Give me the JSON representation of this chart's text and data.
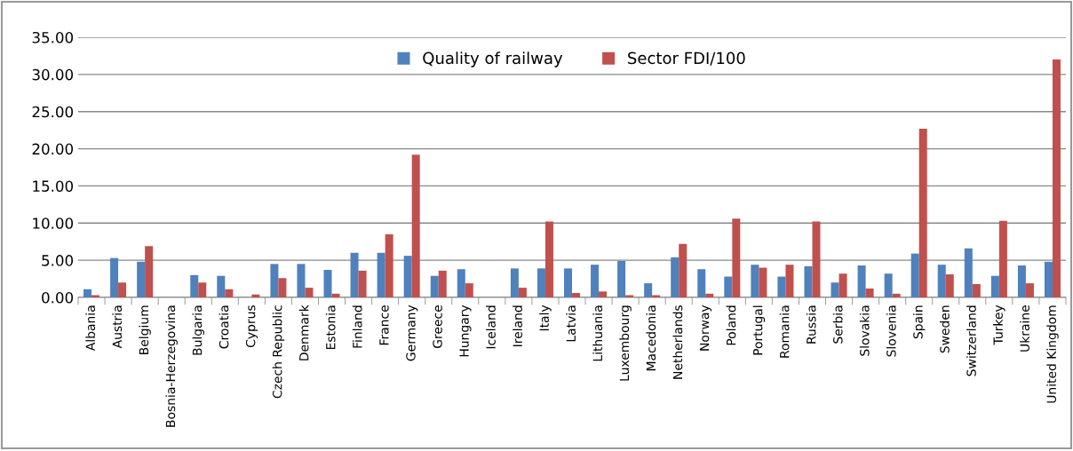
{
  "chart_data": {
    "type": "bar",
    "categories": [
      "Albania",
      "Austria",
      "Belgium",
      "Bosnia-Herzegovina",
      "Bulgaria",
      "Croatia",
      "Cyprus",
      "Czech Republic",
      "Denmark",
      "Estonia",
      "Finland",
      "France",
      "Germany",
      "Greece",
      "Hungary",
      "Iceland",
      "Ireland",
      "Italy",
      "Latvia",
      "Lithuania",
      "Luxembourg",
      "Macedonia",
      "Netherlands",
      "Norway",
      "Poland",
      "Portugal",
      "Romania",
      "Russia",
      "Serbia",
      "Slovakia",
      "Slovenia",
      "Spain",
      "Sweden",
      "Switzerland",
      "Turkey",
      "Ukraine",
      "United Kingdom"
    ],
    "series": [
      {
        "name": "Quality of railway",
        "color": "#4f81bd",
        "values": [
          1.1,
          5.3,
          4.8,
          0,
          3.0,
          2.9,
          0,
          4.5,
          4.5,
          3.7,
          6.0,
          6.0,
          5.6,
          2.9,
          3.8,
          0,
          3.9,
          3.9,
          3.9,
          4.4,
          4.9,
          1.9,
          5.4,
          3.8,
          2.8,
          4.4,
          2.8,
          4.2,
          2.0,
          4.3,
          3.2,
          5.9,
          4.4,
          6.6,
          2.9,
          4.3,
          4.8
        ]
      },
      {
        "name": "Sector FDI/100",
        "color": "#c0504d",
        "values": [
          0.3,
          2.0,
          6.9,
          0,
          2.0,
          1.1,
          0.4,
          2.6,
          1.3,
          0.5,
          3.6,
          8.5,
          19.2,
          3.6,
          1.9,
          0,
          1.3,
          10.2,
          0.6,
          0.8,
          0.3,
          0.3,
          7.2,
          0.5,
          10.6,
          4.0,
          4.4,
          10.2,
          3.2,
          1.2,
          0.5,
          22.7,
          3.1,
          1.8,
          10.3,
          1.9,
          32.0
        ]
      }
    ],
    "ylim": [
      0,
      35
    ],
    "yticks": [
      {
        "value": 0,
        "label": "0.00"
      },
      {
        "value": 5,
        "label": "5.00"
      },
      {
        "value": 10,
        "label": "10.00"
      },
      {
        "value": 15,
        "label": "15.00"
      },
      {
        "value": 20,
        "label": "20.00"
      },
      {
        "value": 25,
        "label": "25.00"
      },
      {
        "value": 30,
        "label": "30.00"
      },
      {
        "value": 35,
        "label": "35.00"
      }
    ],
    "grid": "y",
    "legend": "top"
  }
}
